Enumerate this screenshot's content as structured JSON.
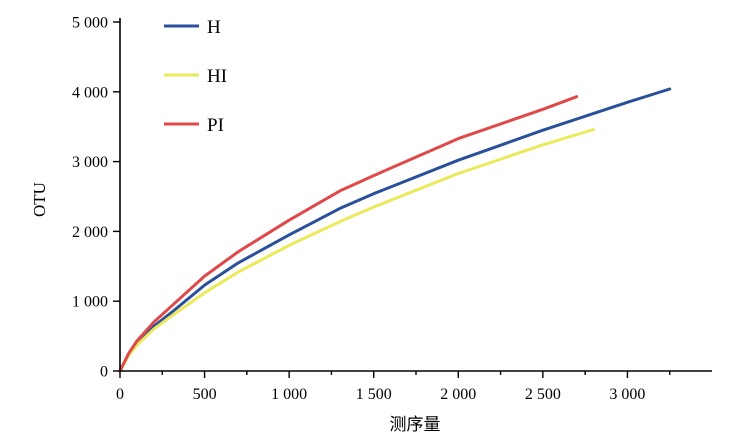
{
  "chart_data": {
    "type": "line",
    "xlabel": "测序量",
    "ylabel": "OTU",
    "xlim": [
      0,
      3500
    ],
    "ylim": [
      0,
      5000
    ],
    "xticks": [
      0,
      500,
      1000,
      1500,
      2000,
      2500,
      3000
    ],
    "xtick_labels": [
      "0",
      "500",
      "1 000",
      "1 500",
      "2 000",
      "2 500",
      "3 000"
    ],
    "xticks_minor": [
      250,
      750,
      1250,
      1750,
      2250,
      2750,
      3250
    ],
    "yticks": [
      0,
      1000,
      2000,
      3000,
      4000,
      5000
    ],
    "ytick_labels": [
      "0",
      "1 000",
      "2 000",
      "3 000",
      "4 000",
      "5 000"
    ],
    "legend_position": "top-left",
    "grid": false,
    "series": [
      {
        "name": "H",
        "color": "#2a4f9b",
        "x": [
          0,
          50,
          100,
          200,
          300,
          500,
          700,
          1000,
          1300,
          1500,
          2000,
          2500,
          3000,
          3250
        ],
        "y": [
          0,
          230,
          400,
          640,
          830,
          1230,
          1550,
          1950,
          2330,
          2540,
          3020,
          3450,
          3850,
          4040
        ]
      },
      {
        "name": "HI",
        "color": "#eaea5a",
        "x": [
          0,
          50,
          100,
          200,
          300,
          500,
          700,
          1000,
          1300,
          1500,
          2000,
          2500,
          2800
        ],
        "y": [
          0,
          220,
          370,
          600,
          780,
          1120,
          1420,
          1800,
          2140,
          2350,
          2830,
          3240,
          3460
        ]
      },
      {
        "name": "PI",
        "color": "#e0494a",
        "x": [
          0,
          50,
          100,
          200,
          300,
          500,
          700,
          1000,
          1300,
          1500,
          2000,
          2500,
          2700
        ],
        "y": [
          0,
          250,
          430,
          700,
          920,
          1360,
          1710,
          2160,
          2580,
          2800,
          3330,
          3750,
          3930
        ]
      }
    ]
  }
}
